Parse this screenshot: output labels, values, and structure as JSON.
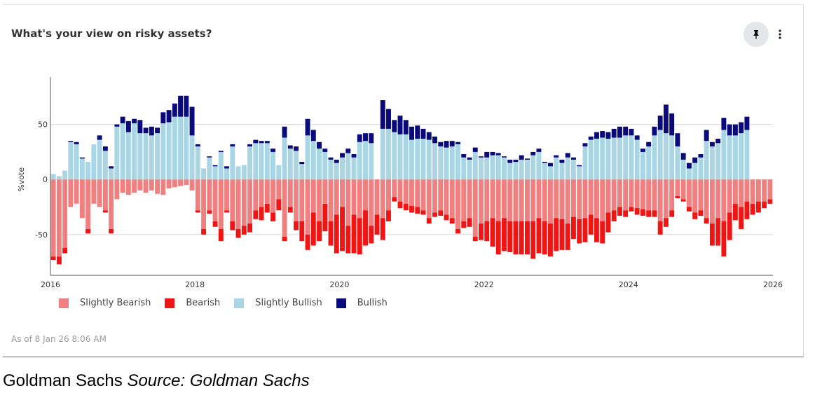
{
  "header": {
    "title": "What's your view on risky assets?"
  },
  "icons": {
    "pin": "pin-icon",
    "more": "more-vert-icon"
  },
  "footer": {
    "as_of": "As of 8 Jan 26 8:06 AM"
  },
  "caption": {
    "publisher": "Goldman Sachs",
    "source": "Source: Goldman Sachs"
  },
  "colors": {
    "slightly_bearish": "#f08080",
    "bearish": "#f01515",
    "slightly_bullish": "#a9d6e5",
    "bullish": "#0a0a7a"
  },
  "chart_data": {
    "type": "bar",
    "stacked": true,
    "title": "What's your view on risky assets?",
    "ylabel": "%vote",
    "xlabel": "",
    "ylim": [
      -87,
      93
    ],
    "yticks": [
      50,
      0,
      -50
    ],
    "ytick_labels": [
      "50",
      "0",
      "-50"
    ],
    "x_start": 2016.0,
    "x_end": 2026.0,
    "xticks": [
      "2016",
      "2018",
      "2020",
      "2022",
      "2024",
      "2026"
    ],
    "grid": "horizontal",
    "legend_position": "bottom-left",
    "series": [
      {
        "name": "Slightly Bearish",
        "color": "#f08080",
        "values": [
          -70,
          -70,
          -62,
          -25,
          -22,
          -35,
          -45,
          -22,
          -25,
          -28,
          -45,
          -18,
          -12,
          -14,
          -12,
          -10,
          -12,
          -10,
          -13,
          -14,
          -8,
          -7,
          -6,
          -5,
          -10,
          -28,
          -45,
          -28,
          -38,
          -45,
          -28,
          -38,
          -45,
          -42,
          -40,
          -28,
          -25,
          -22,
          -30,
          -18,
          -52,
          -25,
          -38,
          -38,
          -50,
          -30,
          -38,
          -22,
          -38,
          -32,
          -25,
          -42,
          -32,
          -35,
          -28,
          -42,
          -32,
          -35,
          -28,
          -16,
          -20,
          -22,
          -24,
          -25,
          -28,
          -35,
          -30,
          -28,
          -32,
          -35,
          -45,
          -38,
          -35,
          -52,
          -40,
          -38,
          -35,
          -38,
          -35,
          -38,
          -38,
          -38,
          -38,
          -38,
          -35,
          -38,
          -40,
          -35,
          -36,
          -40,
          -34,
          -36,
          -35,
          -32,
          -35,
          -38,
          -30,
          -28,
          -25,
          -28,
          -25,
          -26,
          -27,
          -28,
          -28,
          -38,
          -35,
          -28,
          -15,
          -18,
          -25,
          -30,
          -28,
          -35,
          -40,
          -35,
          -38,
          -30,
          -22,
          -25,
          -20,
          -22,
          -20,
          -20,
          -18
        ],
        "stack": "negative"
      },
      {
        "name": "Bearish",
        "color": "#f01515",
        "values": [
          -3,
          -7,
          -5,
          0,
          0,
          0,
          -4,
          0,
          0,
          -2,
          -4,
          0,
          0,
          0,
          0,
          0,
          0,
          0,
          0,
          0,
          0,
          0,
          0,
          0,
          0,
          -2,
          -5,
          -3,
          -5,
          -11,
          -2,
          -8,
          -8,
          -8,
          -8,
          -8,
          -12,
          -8,
          -8,
          -10,
          -4,
          -5,
          -8,
          -18,
          -14,
          -30,
          -18,
          -25,
          -22,
          -35,
          -40,
          -25,
          -35,
          -33,
          -32,
          -16,
          -18,
          -20,
          -10,
          -4,
          -6,
          -6,
          -6,
          -6,
          -4,
          -5,
          -4,
          -5,
          -5,
          -5,
          -4,
          -6,
          -8,
          -4,
          -15,
          -18,
          -26,
          -30,
          -30,
          -28,
          -30,
          -30,
          -30,
          -34,
          -32,
          -30,
          -30,
          -30,
          -28,
          -24,
          -20,
          -22,
          -22,
          -18,
          -22,
          -20,
          -18,
          -10,
          -8,
          -6,
          -4,
          -6,
          -6,
          -6,
          -6,
          -12,
          -8,
          -6,
          -2,
          -2,
          -4,
          -6,
          -5,
          -5,
          -20,
          -25,
          -32,
          -25,
          -15,
          -20,
          -16,
          -10,
          -10,
          -6,
          -4
        ],
        "stack": "negative"
      },
      {
        "name": "Slightly Bullish",
        "color": "#a9d6e5",
        "values": [
          5,
          3,
          8,
          34,
          32,
          19,
          16,
          32,
          36,
          26,
          10,
          48,
          51,
          43,
          51,
          42,
          42,
          40,
          42,
          51,
          52,
          57,
          57,
          57,
          40,
          30,
          10,
          20,
          12,
          25,
          10,
          30,
          12,
          13,
          30,
          33,
          33,
          33,
          25,
          13,
          38,
          28,
          26,
          14,
          40,
          35,
          28,
          25,
          18,
          15,
          20,
          24,
          20,
          34,
          35,
          33,
          0,
          46,
          46,
          43,
          41,
          41,
          36,
          37,
          37,
          36,
          33,
          30,
          29,
          30,
          32,
          20,
          18,
          25,
          20,
          20,
          22,
          22,
          20,
          15,
          16,
          18,
          18,
          22,
          25,
          15,
          12,
          20,
          15,
          20,
          18,
          12,
          30,
          36,
          37,
          38,
          37,
          38,
          38,
          40,
          40,
          36,
          25,
          30,
          40,
          45,
          42,
          40,
          30,
          18,
          10,
          15,
          20,
          35,
          30,
          33,
          45,
          40,
          40,
          42,
          45
        ],
        "stack": "positive"
      },
      {
        "name": "Bullish",
        "color": "#0a0a7a",
        "values": [
          0,
          0,
          0,
          1,
          2,
          1,
          0,
          0,
          4,
          4,
          2,
          2,
          6,
          10,
          4,
          12,
          5,
          8,
          5,
          10,
          11,
          12,
          19,
          19,
          26,
          2,
          0,
          1,
          1,
          1,
          2,
          2,
          0,
          0,
          2,
          3,
          2,
          2,
          3,
          0,
          10,
          3,
          4,
          2,
          15,
          10,
          6,
          3,
          2,
          3,
          4,
          4,
          3,
          7,
          7,
          9,
          0,
          26,
          18,
          11,
          17,
          13,
          12,
          12,
          9,
          7,
          6,
          4,
          6,
          5,
          2,
          3,
          2,
          4,
          1,
          5,
          3,
          2,
          1,
          3,
          2,
          4,
          1,
          3,
          3,
          1,
          3,
          2,
          3,
          4,
          2,
          1,
          3,
          3,
          6,
          6,
          6,
          8,
          10,
          8,
          6,
          4,
          3,
          4,
          8,
          13,
          26,
          20,
          12,
          6,
          5,
          5,
          3,
          10,
          4,
          4,
          11,
          10,
          10,
          10,
          12
        ],
        "stack": "positive"
      }
    ]
  }
}
